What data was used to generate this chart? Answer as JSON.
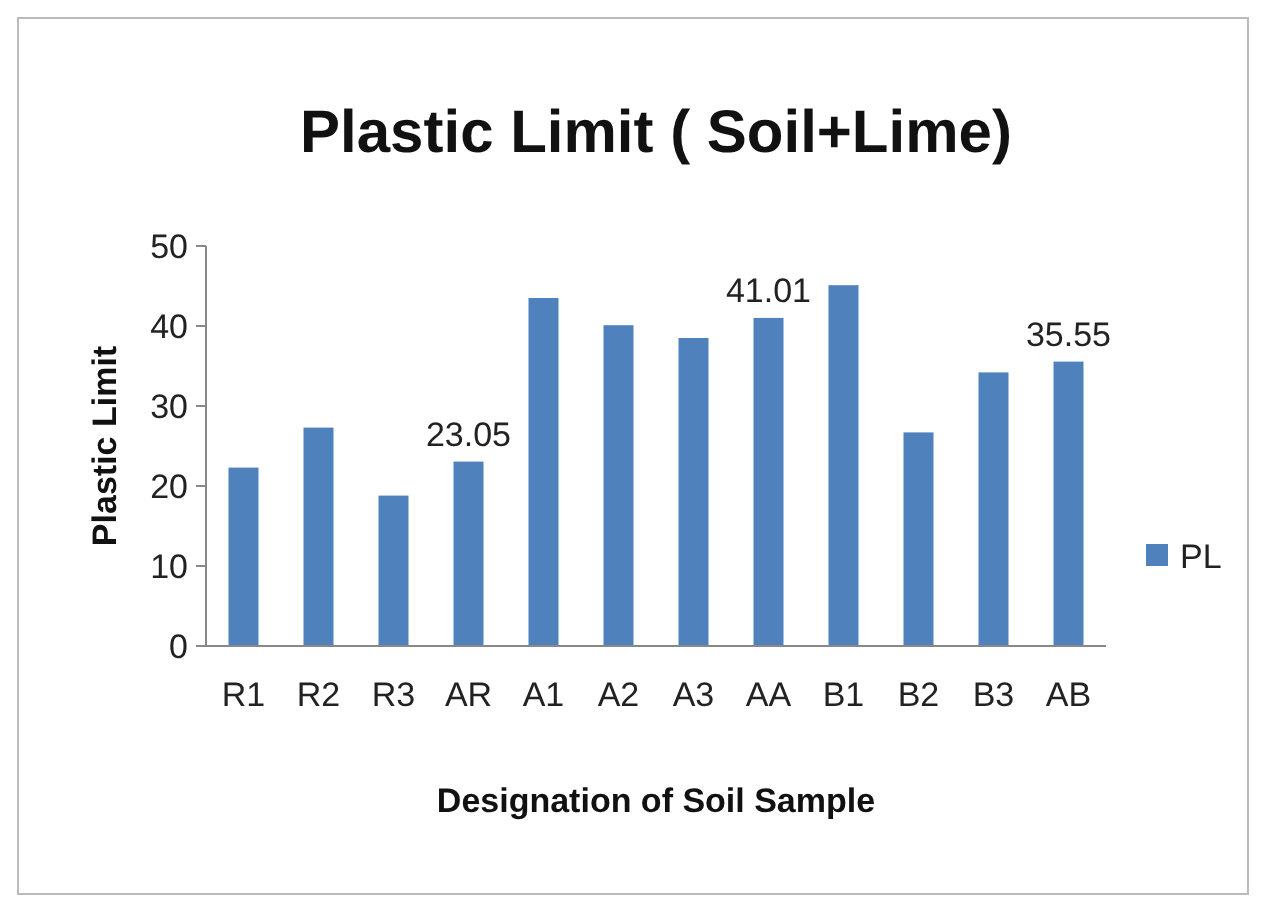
{
  "chart_data": {
    "type": "bar",
    "title": "Plastic Limit ( Soil+Lime)",
    "xlabel": "Designation of Soil Sample",
    "ylabel": "Plastic Limit",
    "categories": [
      "R1",
      "R2",
      "R3",
      "AR",
      "A1",
      "A2",
      "A3",
      "AA",
      "B1",
      "B2",
      "B3",
      "AB"
    ],
    "series": [
      {
        "name": "PL",
        "color": "#4f81bd",
        "values": [
          22.3,
          27.3,
          18.8,
          23.05,
          43.5,
          40.1,
          38.5,
          41.01,
          45.1,
          26.7,
          34.2,
          35.55
        ],
        "value_labels": [
          null,
          null,
          null,
          "23.05",
          null,
          null,
          null,
          "41.01",
          null,
          null,
          null,
          "35.55"
        ]
      }
    ],
    "ylim": [
      0,
      50
    ],
    "yticks": [
      0,
      10,
      20,
      30,
      40,
      50
    ],
    "grid": false,
    "legend": "right"
  }
}
